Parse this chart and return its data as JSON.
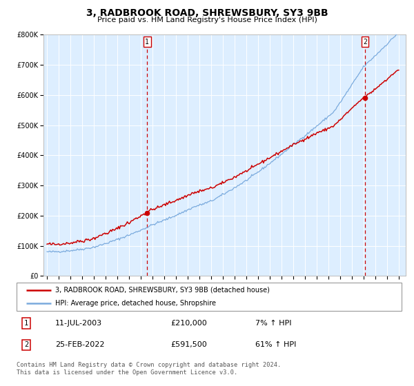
{
  "title": "3, RADBROOK ROAD, SHREWSBURY, SY3 9BB",
  "subtitle": "Price paid vs. HM Land Registry's House Price Index (HPI)",
  "legend_line1": "3, RADBROOK ROAD, SHREWSBURY, SY3 9BB (detached house)",
  "legend_line2": "HPI: Average price, detached house, Shropshire",
  "transaction1_date": "11-JUL-2003",
  "transaction1_price": 210000,
  "transaction1_hpi": "7% ↑ HPI",
  "transaction1_label": "1",
  "transaction2_date": "25-FEB-2022",
  "transaction2_price": 591500,
  "transaction2_hpi": "61% ↑ HPI",
  "transaction2_label": "2",
  "hpi_color": "#7aaadd",
  "property_color": "#cc0000",
  "vline_color": "#cc0000",
  "bg_color": "#ddeeff",
  "ylim": [
    0,
    800000
  ],
  "footer": "Contains HM Land Registry data © Crown copyright and database right 2024.\nThis data is licensed under the Open Government Licence v3.0.",
  "start_year": 1995,
  "end_year": 2025,
  "t1_year": 2003.54,
  "t2_year": 2022.12,
  "t1_price": 210000,
  "t2_price": 591500
}
